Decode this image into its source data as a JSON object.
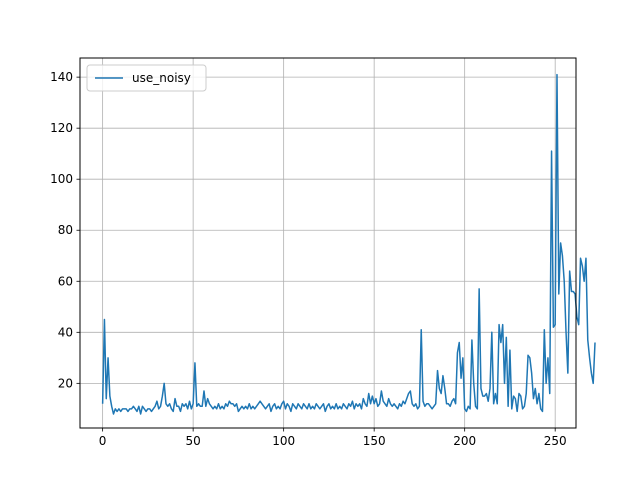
{
  "chart_data": {
    "type": "line",
    "title": "",
    "xlabel": "",
    "ylabel": "",
    "xlim": [
      -12.5,
      261.5
    ],
    "ylim": [
      2.5,
      147.5
    ],
    "xticks": [
      0,
      50,
      100,
      150,
      200,
      250
    ],
    "yticks": [
      20,
      40,
      60,
      80,
      100,
      120,
      140
    ],
    "grid": true,
    "legend": "upper left",
    "series": [
      {
        "name": "use_noisy",
        "color": "#1f77b4",
        "x_start": 0,
        "x_step": 1,
        "values": [
          12,
          45,
          14,
          30,
          15,
          11,
          8,
          10,
          9,
          10,
          9,
          10,
          10,
          10,
          9,
          10,
          10,
          11,
          10,
          9,
          11,
          8,
          11,
          10,
          9,
          10,
          10,
          9,
          10,
          11,
          13,
          10,
          11,
          15,
          20,
          12,
          11,
          12,
          10,
          9,
          14,
          11,
          11,
          9,
          12,
          11,
          12,
          10,
          13,
          10,
          12,
          28,
          11,
          12,
          11,
          11,
          17,
          11,
          14,
          12,
          11,
          10,
          11,
          10,
          12,
          10,
          11,
          10,
          12,
          11,
          13,
          12,
          12,
          11,
          12,
          9,
          10,
          11,
          10,
          11,
          10,
          12,
          10,
          11,
          10,
          11,
          12,
          13,
          12,
          11,
          10,
          11,
          12,
          9,
          11,
          12,
          10,
          11,
          10,
          12,
          13,
          10,
          12,
          11,
          9,
          12,
          11,
          10,
          12,
          11,
          10,
          12,
          11,
          10,
          12,
          10,
          11,
          10,
          12,
          11,
          10,
          11,
          12,
          9,
          11,
          12,
          10,
          11,
          10,
          12,
          10,
          11,
          10,
          12,
          11,
          10,
          12,
          11,
          13,
          10,
          12,
          11,
          12,
          10,
          14,
          12,
          11,
          16,
          12,
          15,
          12,
          14,
          11,
          12,
          17,
          13,
          12,
          11,
          14,
          12,
          11,
          12,
          11,
          10,
          12,
          11,
          13,
          12,
          14,
          16,
          17,
          12,
          11,
          12,
          10,
          11,
          41,
          13,
          11,
          12,
          12,
          11,
          10,
          11,
          12,
          25,
          18,
          16,
          23,
          18,
          12,
          12,
          11,
          13,
          14,
          12,
          32,
          36,
          22,
          30,
          10,
          9,
          11,
          10,
          37,
          20,
          11,
          10,
          57,
          18,
          15,
          15,
          16,
          13,
          18,
          40,
          12,
          16,
          12,
          43,
          36,
          43,
          20,
          38,
          11,
          33,
          10,
          15,
          14,
          9,
          16,
          15,
          10,
          11,
          16,
          31,
          30,
          24,
          14,
          18,
          12,
          16,
          10,
          9,
          41,
          20,
          30,
          16,
          111,
          42,
          43,
          141,
          55,
          75,
          70,
          60,
          40,
          24,
          64,
          56,
          56,
          55,
          46,
          43,
          69,
          66,
          60,
          69,
          37,
          30,
          24,
          20,
          36
        ]
      }
    ]
  }
}
